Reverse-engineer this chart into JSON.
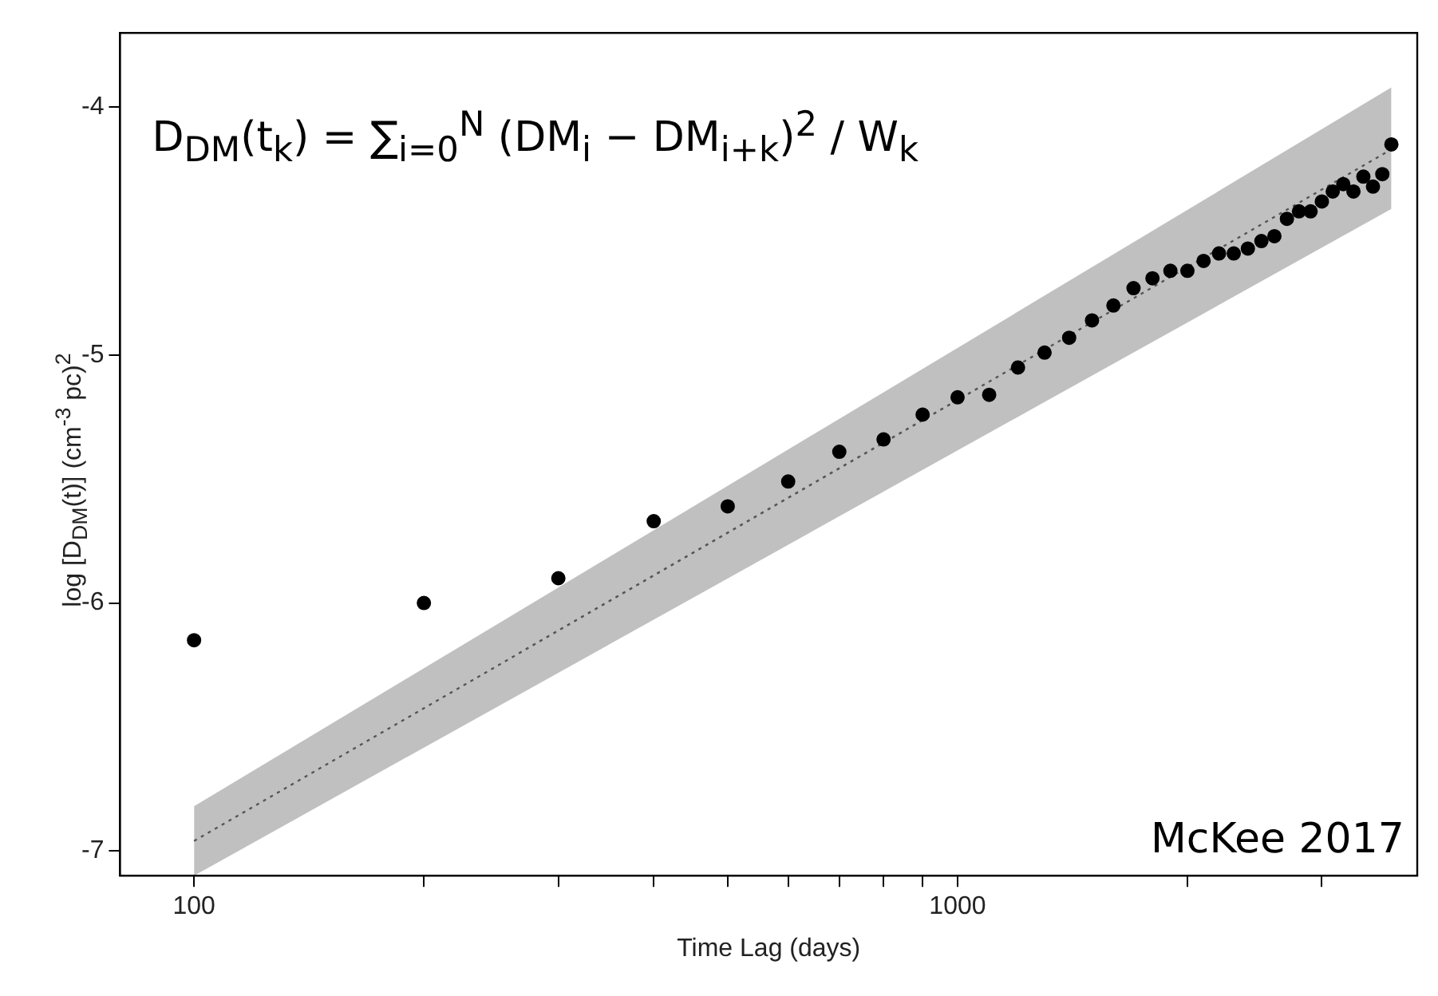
{
  "chart_data": {
    "type": "scatter",
    "xlabel": "Time Lag (days)",
    "ylabel": "log [D$_{DM}$(t)] (cm$^{-3}$ pc)$^{2}$",
    "log": "x",
    "xlim": [
      80,
      4000
    ],
    "ylim": [
      -7.1,
      -3.7
    ],
    "xticks": [
      100,
      {
        "value": 200,
        "label": null
      },
      {
        "value": 300,
        "label": null
      },
      {
        "value": 400,
        "label": null
      },
      {
        "value": 500,
        "label": null
      },
      {
        "value": 600,
        "label": null
      },
      {
        "value": 700,
        "label": null
      },
      {
        "value": 800,
        "label": null
      },
      {
        "value": 900,
        "label": null
      },
      1000,
      {
        "value": 2000,
        "label": null
      },
      {
        "value": 3000,
        "label": null
      }
    ],
    "yticks": [
      -7,
      -6,
      -5,
      -4
    ],
    "grid": false,
    "legend": false,
    "marker": "circle",
    "annotations": [
      "D$_{DM}$(t$_{k}$) = ∑$_{i=0}$$^{N}$ (DM$_{i}$ − DM$_{i+k}$)$^{2}$ / W$_{k}$",
      "McKee 2017"
    ],
    "series": [
      {
        "color": "#000000",
        "x": [
          100,
          200,
          300,
          400,
          500,
          600,
          700,
          800,
          900,
          1000,
          1100,
          1200,
          1300,
          1400,
          1500,
          1600,
          1700,
          1800,
          1900,
          2000,
          2100,
          2200,
          2300,
          2400,
          2500,
          2600,
          2700,
          2800,
          2900,
          3000,
          3100,
          3200,
          3300,
          3400,
          3500,
          3600,
          3700
        ],
        "values": [
          -6.15,
          -6.0,
          -5.9,
          -5.67,
          -5.61,
          -5.51,
          -5.39,
          -5.34,
          -5.24,
          -5.17,
          -5.16,
          -5.05,
          -4.99,
          -4.93,
          -4.86,
          -4.8,
          -4.73,
          -4.69,
          -4.66,
          -4.66,
          -4.62,
          -4.59,
          -4.59,
          -4.57,
          -4.54,
          -4.52,
          -4.45,
          -4.42,
          -4.42,
          -4.38,
          -4.34,
          -4.31,
          -4.34,
          -4.28,
          -4.32,
          -4.27,
          -4.15
        ]
      },
      {
        "type": "line",
        "color": "#555555",
        "line_style": "dotted",
        "marker": "none",
        "x": [
          100,
          3700
        ],
        "values": [
          -6.96,
          -4.17
        ],
        "lower": [
          -7.1,
          -4.41
        ],
        "upper": [
          -6.82,
          -3.92
        ]
      }
    ]
  }
}
